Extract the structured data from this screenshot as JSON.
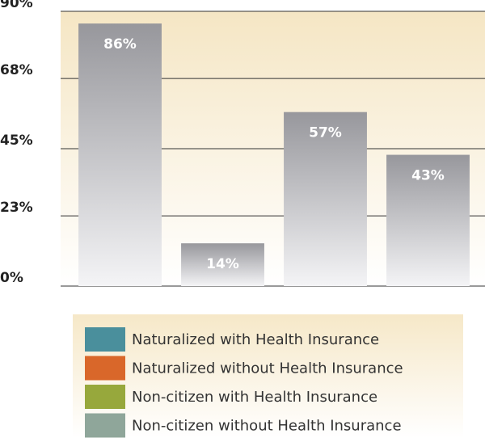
{
  "chart_data": {
    "type": "bar",
    "categories": [
      null,
      null,
      null,
      null
    ],
    "values": [
      86,
      14,
      57,
      43
    ],
    "value_labels": [
      "86%",
      "14%",
      "57%",
      "43%"
    ],
    "ylim": [
      0,
      90
    ],
    "yticks": [
      {
        "value": 0,
        "label": "0%"
      },
      {
        "value": 23,
        "label": "23%"
      },
      {
        "value": 45,
        "label": "45%"
      },
      {
        "value": 68,
        "label": "68%"
      },
      {
        "value": 90,
        "label": "90%"
      }
    ],
    "grid": true,
    "legend": [
      {
        "name": "Naturalized with Health Insurance",
        "color": "#4a8f9c"
      },
      {
        "name": "Naturalized without Health Insurance",
        "color": "#d9672a"
      },
      {
        "name": "Non-citizen with Health Insurance",
        "color": "#97a83c"
      },
      {
        "name": "Non-citizen without Health Insurance",
        "color": "#8fa69a"
      }
    ]
  }
}
